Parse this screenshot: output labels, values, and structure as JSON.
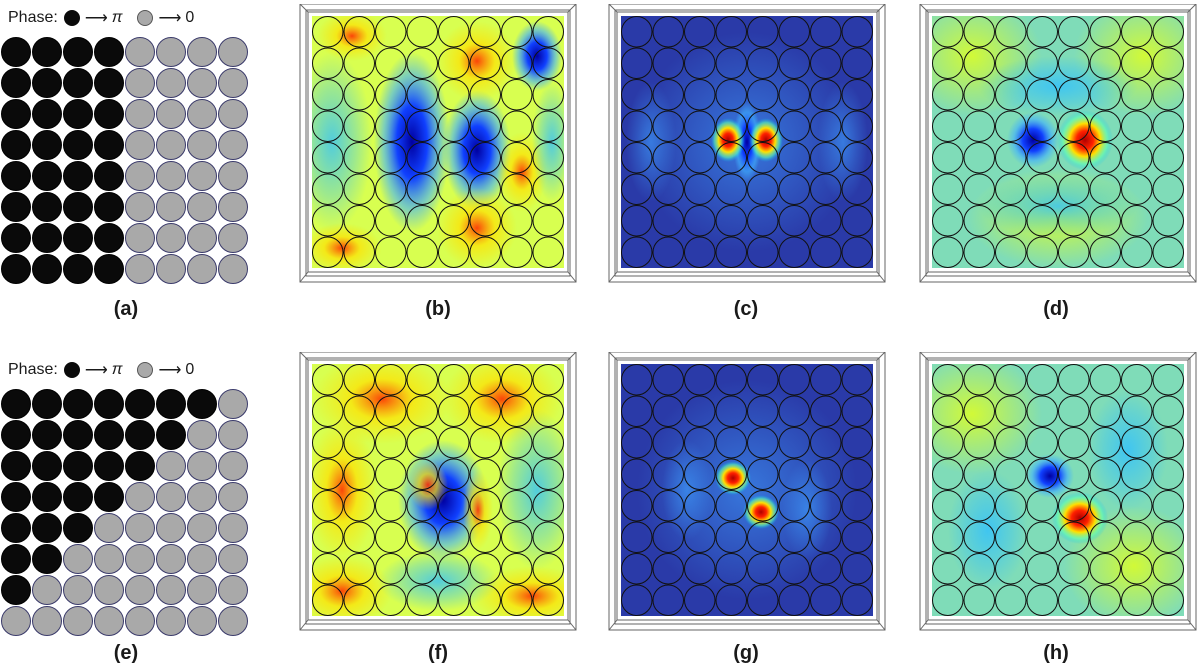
{
  "legend_top": {
    "prefix": "Phase:",
    "arrow": "⟶",
    "black_value": "π",
    "grey_value": "0"
  },
  "legend_bottom": {
    "prefix": "Phase:",
    "arrow": "⟶",
    "black_value": "π",
    "grey_value": "0"
  },
  "captions": {
    "a": "(a)",
    "b": "(b)",
    "c": "(c)",
    "d": "(d)",
    "e": "(e)",
    "f": "(f)",
    "g": "(g)",
    "h": "(h)"
  },
  "colors": {
    "pi_phase": "#0a0a0a",
    "zero_phase": "#a9a9a9"
  },
  "phase_maps": {
    "a": [
      "11110000",
      "11110000",
      "11110000",
      "11110000",
      "11110000",
      "11110000",
      "11110000",
      "11110000"
    ],
    "e": [
      "11111110",
      "11111100",
      "11111000",
      "11110000",
      "11100000",
      "11000000",
      "10000000",
      "00000000"
    ]
  },
  "field_panels": [
    {
      "id": "b",
      "kind": "phase",
      "pattern": "split"
    },
    {
      "id": "c",
      "kind": "amplitude",
      "pattern": "pair-horizontal"
    },
    {
      "id": "d",
      "kind": "field",
      "pattern": "dipole-horizontal"
    },
    {
      "id": "f",
      "kind": "phase",
      "pattern": "vortex"
    },
    {
      "id": "g",
      "kind": "amplitude",
      "pattern": "pair-diagonal"
    },
    {
      "id": "h",
      "kind": "field",
      "pattern": "dipole-diagonal"
    }
  ]
}
